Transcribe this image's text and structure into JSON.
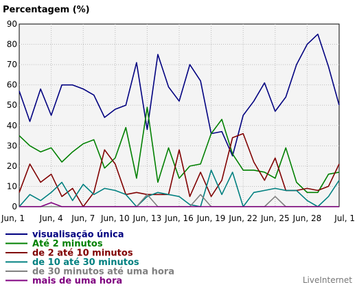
{
  "chart_data": {
    "type": "line",
    "title": "Percentagem (%)",
    "xlabel": "",
    "ylabel": "",
    "ylim": [
      0,
      90
    ],
    "yticks": [
      0,
      10,
      20,
      30,
      40,
      50,
      60,
      70,
      80,
      90
    ],
    "x_tick_labels": [
      "Jun, 1",
      "Jun, 4",
      "Jun, 7",
      "Jun, 10",
      "Jun, 13",
      "Jun, 16",
      "Jun, 19",
      "Jun, 22",
      "Jun, 25",
      "Jun, 28",
      "Jul, 1"
    ],
    "x_tick_positions": [
      0,
      3,
      6,
      9,
      12,
      15,
      18,
      21,
      24,
      27,
      30
    ],
    "grid": true,
    "legend_position": "bottom",
    "series": [
      {
        "name": "visualisação única",
        "color": "#000080",
        "values": [
          57,
          42,
          58,
          45,
          60,
          60,
          58,
          55,
          44,
          48,
          50,
          71,
          38,
          75,
          59,
          52,
          70,
          62,
          36,
          37,
          25,
          45,
          52,
          61,
          47,
          54,
          70,
          80,
          85,
          69,
          50
        ]
      },
      {
        "name": "Até 2 minutos",
        "color": "#008000",
        "values": [
          35,
          30,
          27,
          29,
          22,
          27,
          31,
          33,
          19,
          24,
          39,
          14,
          49,
          12,
          29,
          14,
          20,
          21,
          36,
          43,
          26,
          18,
          18,
          17,
          14,
          29,
          12,
          7,
          7,
          16,
          17
        ]
      },
      {
        "name": "de 2 até 10 minutos",
        "color": "#800000",
        "values": [
          7,
          21,
          12,
          16,
          5,
          9,
          0,
          7,
          28,
          21,
          6,
          7,
          6,
          6,
          6,
          28,
          5,
          17,
          5,
          13,
          34,
          36,
          22,
          13,
          24,
          8,
          8,
          9,
          8,
          10,
          21
        ]
      },
      {
        "name": "de 10 até 30 minutos",
        "color": "#008080",
        "values": [
          0,
          6,
          3,
          7,
          12,
          3,
          11,
          6,
          9,
          8,
          6,
          0,
          5,
          7,
          6,
          5,
          1,
          0,
          18,
          6,
          17,
          0,
          7,
          8,
          9,
          8,
          8,
          3,
          0,
          5,
          13
        ]
      },
      {
        "name": "de 30 minutos até uma hora",
        "color": "#808080",
        "values": [
          0,
          0,
          0,
          0,
          0,
          0,
          0,
          0,
          0,
          0,
          0,
          0,
          6,
          0,
          0,
          0,
          0,
          6,
          0,
          0,
          0,
          0,
          0,
          0,
          5,
          0,
          0,
          0,
          0,
          0,
          0
        ]
      },
      {
        "name": "mais de uma hora",
        "color": "#800080",
        "values": [
          0,
          0,
          0,
          2,
          0,
          0,
          0,
          0,
          0,
          0,
          0,
          0,
          0,
          0,
          0,
          0,
          0,
          0,
          0,
          0,
          0,
          0,
          0,
          0,
          0,
          0,
          0,
          0,
          0,
          0,
          0
        ]
      }
    ]
  },
  "footer": {
    "brand": "LiveInternet"
  }
}
